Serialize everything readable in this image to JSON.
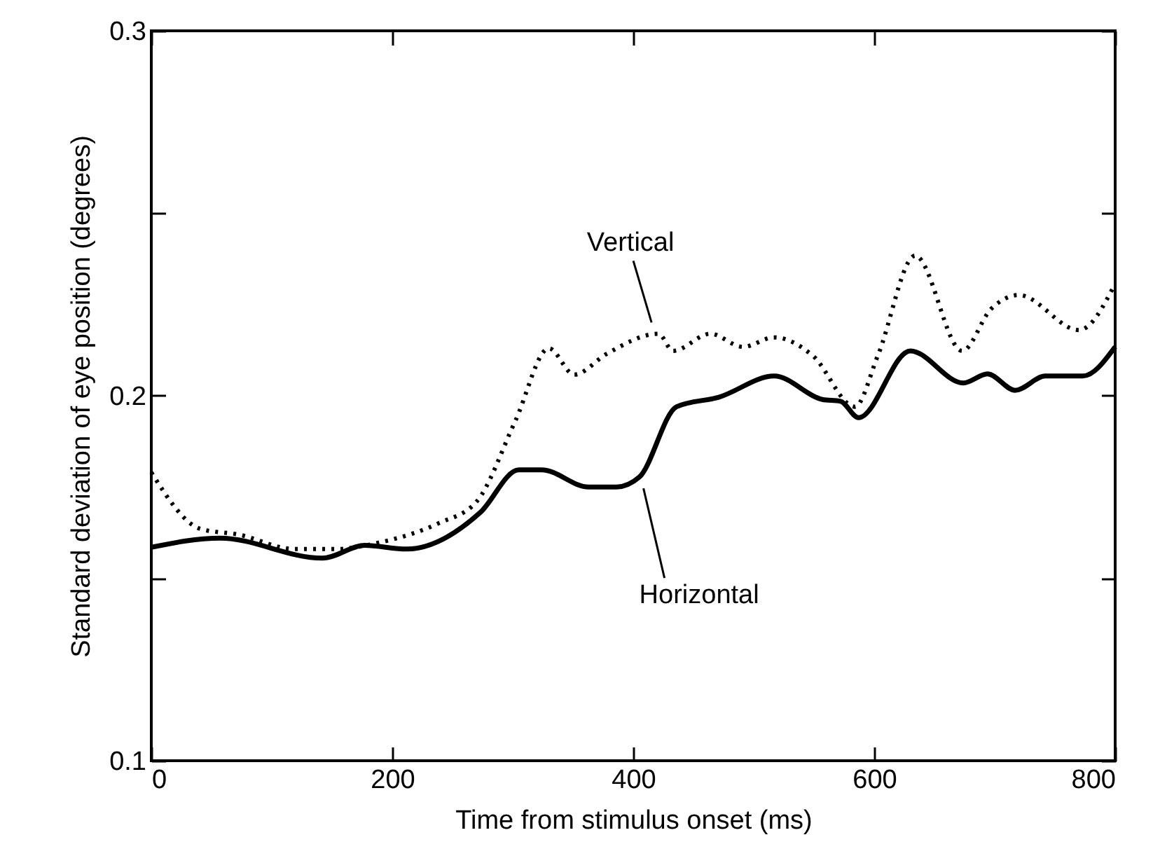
{
  "chart_data": {
    "type": "line",
    "xlabel": "Time from stimulus onset (ms)",
    "ylabel": "Standard deviation of eye position (degrees)",
    "xlim": [
      0,
      800
    ],
    "xticks": [
      0,
      200,
      400,
      600,
      800
    ],
    "ylim": [
      0.1,
      0.3
    ],
    "yticks": [
      0.1,
      {
        "value": 0.15,
        "label": null
      },
      0.2,
      {
        "value": 0.25,
        "label": null
      },
      0.3
    ],
    "grid": false,
    "marker": "none",
    "series": [
      {
        "name": "Vertical",
        "color": "#000000",
        "line_style": "dotted",
        "x": [
          0,
          41,
          72,
          119,
          153,
          188,
          238,
          270,
          302,
          330,
          351,
          378,
          421,
          433,
          464,
          491,
          517,
          549,
          584,
          603,
          634,
          673,
          697,
          720,
          770,
          800
        ],
        "values": [
          0.179,
          0.1635,
          0.162,
          0.158,
          0.158,
          0.1597,
          0.165,
          0.171,
          0.193,
          0.213,
          0.2058,
          0.2115,
          0.217,
          0.2123,
          0.217,
          0.2134,
          0.216,
          0.211,
          0.197,
          0.211,
          0.2384,
          0.2123,
          0.2238,
          0.2276,
          0.218,
          0.2307
        ]
      },
      {
        "name": "Horizontal",
        "color": "#000000",
        "line_style": "solid",
        "x": [
          0,
          57,
          142,
          177,
          212,
          273,
          305,
          324,
          363,
          386,
          405,
          436,
          471,
          517,
          557,
          572,
          587,
          630,
          674,
          694,
          717,
          742,
          773,
          800
        ],
        "values": [
          0.1585,
          0.161,
          0.1555,
          0.159,
          0.158,
          0.168,
          0.1797,
          0.1797,
          0.175,
          0.175,
          0.1777,
          0.197,
          0.1996,
          0.2054,
          0.199,
          0.1985,
          0.194,
          0.2123,
          0.2035,
          0.206,
          0.2015,
          0.2054,
          0.2054,
          0.2134
        ]
      }
    ]
  }
}
